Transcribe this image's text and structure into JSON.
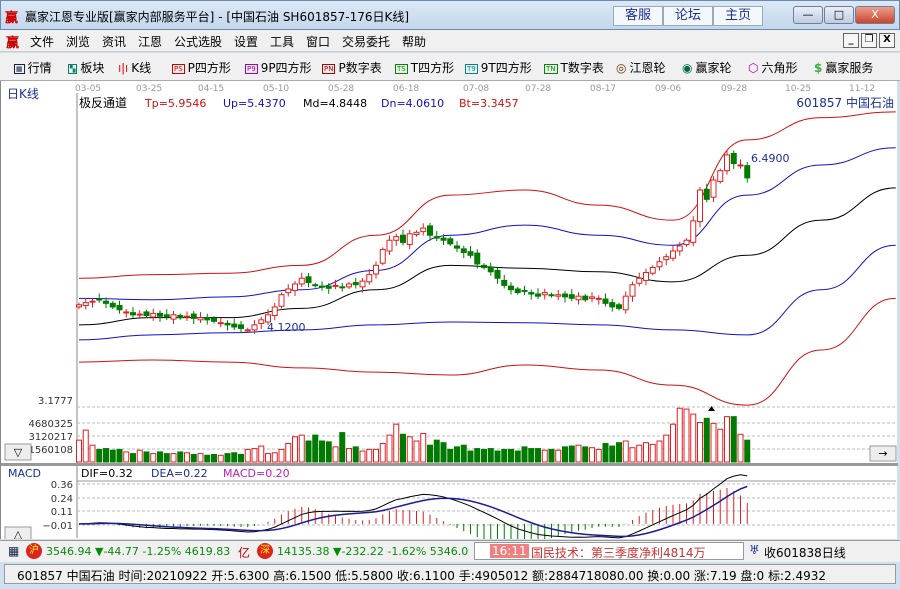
{
  "window": {
    "title": "赢家江恩专业版[赢家内部服务平台] - [中国石油  SH601857-176日K线]",
    "logo": "赢",
    "links": [
      "客服",
      "论坛",
      "主页"
    ],
    "controls": [
      "—",
      "□",
      "X"
    ]
  },
  "menu": {
    "items": [
      "文件",
      "浏览",
      "资讯",
      "江恩",
      "公式选股",
      "设置",
      "工具",
      "窗口",
      "交易委托",
      "帮助"
    ],
    "mdi": [
      "_",
      "❐",
      "X"
    ]
  },
  "toolbar": {
    "items": [
      {
        "label": "行情",
        "icon": "table-icon"
      },
      {
        "label": "板块",
        "icon": "blocks-icon"
      },
      {
        "label": "K线",
        "icon": "candlestick-icon"
      },
      {
        "label": "P四方形",
        "icon": "ps-icon",
        "tag": "PS"
      },
      {
        "label": "9P四方形",
        "icon": "p9-icon",
        "tag": "P9"
      },
      {
        "label": "P数字表",
        "icon": "pn-icon",
        "tag": "PN"
      },
      {
        "label": "T四方形",
        "icon": "ts-icon",
        "tag": "TS"
      },
      {
        "label": "9T四方形",
        "icon": "t9-icon",
        "tag": "T9"
      },
      {
        "label": "T数字表",
        "icon": "tn-icon",
        "tag": "TN"
      },
      {
        "label": "江恩轮",
        "icon": "gann-wheel-icon"
      },
      {
        "label": "赢家轮",
        "icon": "winner-wheel-icon"
      },
      {
        "label": "六角形",
        "icon": "hexagon-icon"
      },
      {
        "label": "赢家服务",
        "icon": "dollar-icon"
      }
    ]
  },
  "chart": {
    "period_label": "日K线",
    "dates": [
      "03-05",
      "03-25",
      "04-15",
      "05-10",
      "05-28",
      "06-18",
      "07-08",
      "07-28",
      "08-17",
      "09-06",
      "09-28",
      "10-25",
      "11-12"
    ],
    "indicator": {
      "name": "极反通道",
      "tp": "Tp=5.9546",
      "up": "Up=5.4370",
      "md": "Md=4.8448",
      "dn": "Dn=4.0610",
      "bt": "Bt=3.3457"
    },
    "stock": "601857  中国石油",
    "high_marker": "6.4900",
    "low_marker": "4.1200",
    "price_axis_label": "3.1777",
    "volume_axis": [
      "4680325",
      "3120217",
      "1560108"
    ],
    "macd": {
      "name": "MACD",
      "dif": "DIF=0.32",
      "dea": "DEA=0.22",
      "macd": "MACD=0.20",
      "axis": [
        "0.36",
        "0.24",
        "0.11",
        "−0.01"
      ]
    },
    "colors": {
      "up": "#e02020",
      "down": "#007a00",
      "tp": "#d01010",
      "upband": "#1010c8",
      "md": "#000000",
      "dn": "#1010c8",
      "bt": "#d01010",
      "dif": "#000000",
      "dea": "#1a1a9a"
    }
  },
  "chart_data": {
    "type": "candlestick",
    "closes": [
      4.43,
      4.46,
      4.48,
      4.5,
      4.45,
      4.4,
      4.36,
      4.33,
      4.29,
      4.3,
      4.28,
      4.31,
      4.27,
      4.26,
      4.29,
      4.25,
      4.27,
      4.24,
      4.25,
      4.22,
      4.2,
      4.18,
      4.15,
      4.12,
      4.1,
      4.08,
      4.15,
      4.22,
      4.29,
      4.4,
      4.57,
      4.65,
      4.72,
      4.8,
      4.74,
      4.7,
      4.68,
      4.66,
      4.7,
      4.68,
      4.72,
      4.71,
      4.76,
      4.85,
      4.98,
      5.2,
      5.33,
      5.38,
      5.3,
      5.42,
      5.44,
      5.5,
      5.4,
      5.36,
      5.33,
      5.28,
      5.22,
      5.16,
      5.12,
      5.0,
      4.95,
      4.89,
      4.8,
      4.7,
      4.64,
      4.6,
      4.62,
      4.58,
      4.55,
      4.6,
      4.56,
      4.57,
      4.54,
      4.52,
      4.55,
      4.5,
      4.54,
      4.52,
      4.45,
      4.4,
      4.38,
      4.55,
      4.71,
      4.8,
      4.88,
      4.95,
      5.03,
      5.1,
      5.18,
      5.25,
      5.33,
      5.6,
      6.03,
      5.9,
      6.17,
      6.3,
      6.52,
      6.4,
      6.38,
      6.2
    ],
    "volumes_millions": [
      2.6,
      3.8,
      2.0,
      1.5,
      1.6,
      1.4,
      1.5,
      1.2,
      1.0,
      1.4,
      1.2,
      1.0,
      1.2,
      1.0,
      1.0,
      1.2,
      1.1,
      0.9,
      1.0,
      0.8,
      0.9,
      0.8,
      1.0,
      1.1,
      0.9,
      1.5,
      1.6,
      1.9,
      1.0,
      1.1,
      1.5,
      2.2,
      3.0,
      3.2,
      2.5,
      3.2,
      2.5,
      2.4,
      1.8,
      3.5,
      1.6,
      1.8,
      1.3,
      1.5,
      1.5,
      2.2,
      3.2,
      4.5,
      3.3,
      3.0,
      2.5,
      3.4,
      2.0,
      2.6,
      2.3,
      1.5,
      1.8,
      2.0,
      1.3,
      1.6,
      1.5,
      1.6,
      1.3,
      1.5,
      1.5,
      1.3,
      1.8,
      1.6,
      1.6,
      1.4,
      1.5,
      1.4,
      1.8,
      1.9,
      2.0,
      1.8,
      1.7,
      1.5,
      2.2,
      1.9,
      2.3,
      2.5,
      1.7,
      2.0,
      2.3,
      2.1,
      2.5,
      3.2,
      4.5,
      6.4,
      6.3,
      5.7,
      4.7,
      5.2,
      4.6,
      3.9,
      5.4,
      5.4,
      3.3,
      2.6
    ],
    "bands": {
      "tp": [
        4.8,
        4.85,
        4.87,
        4.98,
        5.4,
        5.96,
        6.03,
        5.82,
        5.61,
        6.73,
        7.04,
        7.12
      ],
      "up": [
        4.52,
        4.5,
        4.54,
        4.64,
        4.91,
        5.4,
        5.54,
        5.4,
        5.26,
        5.96,
        6.38,
        6.62
      ],
      "md": [
        4.15,
        4.25,
        4.25,
        4.38,
        4.64,
        4.98,
        4.94,
        4.89,
        4.75,
        5.12,
        5.61,
        6.06
      ],
      "dn": [
        3.94,
        4.01,
        4.04,
        4.08,
        4.15,
        4.19,
        4.18,
        4.15,
        4.08,
        4.01,
        4.64,
        5.26
      ],
      "bt": [
        3.63,
        3.66,
        3.63,
        3.55,
        3.49,
        3.45,
        3.59,
        3.52,
        3.31,
        3.03,
        3.8,
        4.52
      ]
    }
  },
  "status": {
    "sh_badge": "沪",
    "sh": "3546.94 ▼-44.77 -1.25% 4619.83",
    "sh_unit": "亿",
    "sz_badge": "深",
    "sz": "14135.38 ▼-232.22 -1.62% 5346.0",
    "news_time": "16:11",
    "news": "国民技术：第三季度净利4814万",
    "alert": "收601838日线",
    "detail": "601857 中国石油 时间:20210922 开:5.6300 高:6.1500 低:5.5800 收:6.1100 手:4905012 额:2884718080.00 换:0.00 涨:7.19 盘:0 标:2.4932"
  }
}
